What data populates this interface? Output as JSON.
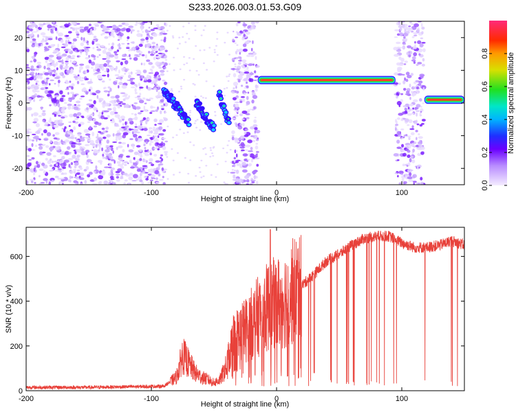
{
  "title": "S233.2026.003.01.53.G09",
  "colors": {
    "snr_line": "#e8413a",
    "frame": "#000000",
    "background": "#ffffff"
  },
  "chart_data": [
    {
      "type": "heatmap",
      "name": "spectrogram",
      "xlabel": "Height of straight line (km)",
      "ylabel": "Frequency (Hz)",
      "xlim": [
        -200,
        150
      ],
      "ylim": [
        -25,
        25
      ],
      "xticks": [
        -200,
        -100,
        0,
        100
      ],
      "xtick_labels": [
        "-200",
        "-100",
        "0",
        "100"
      ],
      "yticks": [
        -20,
        -10,
        0,
        10,
        20
      ],
      "ytick_labels": [
        "-20",
        "-10",
        "0",
        "10",
        "20"
      ],
      "noise_regions_km": [
        [
          -200,
          -88
        ],
        [
          -35,
          -15
        ],
        [
          95,
          118
        ]
      ],
      "ridges": [
        {
          "x_start": -90,
          "x_end": -70,
          "f_start": 4,
          "f_end": -6
        },
        {
          "x_start": -64,
          "x_end": -50,
          "f_start": 0,
          "f_end": -8
        },
        {
          "x_start": -46,
          "x_end": -38,
          "f_start": 3,
          "f_end": -6
        },
        {
          "x_start": -15,
          "x_end": 95,
          "f_start": 7,
          "f_end": 7
        },
        {
          "x_start": 118,
          "x_end": 150,
          "f_start": 1,
          "f_end": 1
        }
      ],
      "colorbar": {
        "label": "Normalized spectral amplitude",
        "range": [
          0.0,
          1.0
        ],
        "ticks": [
          0.0,
          0.2,
          0.4,
          0.6,
          0.8
        ],
        "tick_labels": [
          "0.0",
          "0.2",
          "0.4",
          "0.6",
          "0.8"
        ]
      }
    },
    {
      "type": "line",
      "name": "snr",
      "xlabel": "Height of straight line (km)",
      "ylabel": "SNR (10 * v/v)",
      "xlim": [
        -200,
        150
      ],
      "ylim": [
        0,
        730
      ],
      "xticks": [
        -200,
        -100,
        0,
        100
      ],
      "xtick_labels": [
        "-200",
        "-100",
        "0",
        "100"
      ],
      "yticks": [
        0,
        200,
        400,
        600
      ],
      "ytick_labels": [
        "0",
        "200",
        "400",
        "600"
      ],
      "series": [
        {
          "name": "SNR",
          "x": [
            -200,
            -150,
            -90,
            -80,
            -75,
            -70,
            -65,
            -60,
            -55,
            -50,
            -45,
            -40,
            -35,
            -30,
            -25,
            -20,
            -15,
            -10,
            -5,
            0,
            5,
            10,
            20,
            30,
            40,
            50,
            60,
            70,
            80,
            90,
            100,
            110,
            120,
            130,
            140,
            150
          ],
          "values": [
            15,
            15,
            20,
            60,
            160,
            120,
            80,
            60,
            50,
            35,
            50,
            110,
            220,
            250,
            270,
            300,
            330,
            360,
            380,
            390,
            400,
            430,
            470,
            520,
            580,
            610,
            650,
            680,
            690,
            690,
            660,
            640,
            640,
            650,
            670,
            650
          ]
        }
      ]
    }
  ]
}
